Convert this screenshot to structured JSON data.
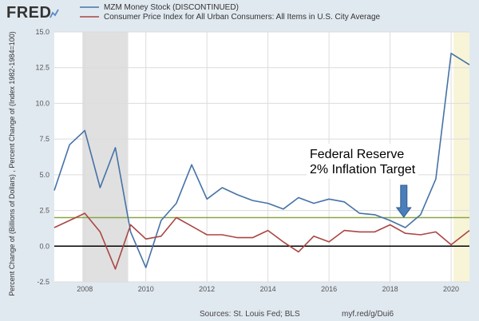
{
  "header": {
    "logo": "FRED",
    "logo_icon": "line-chart-icon"
  },
  "legend": [
    {
      "label": "MZM Money Stock (DISCONTINUED)",
      "color": "#4572a7"
    },
    {
      "label": "Consumer Price Index for All Urban Consumers: All Items in U.S. City Average",
      "color": "#aa4643"
    }
  ],
  "footer": {
    "source": "Sources: St. Louis Fed; BLS",
    "url": "myf.red/g/Dui6"
  },
  "chart_data": {
    "type": "line",
    "ylabel": "Percent Change of (Billions of Dollars) , Percent Change of (Index 1982-1984=100)",
    "ylim": [
      -2.5,
      15.0
    ],
    "yticks": [
      -2.5,
      0.0,
      2.5,
      5.0,
      7.5,
      10.0,
      12.5,
      15.0
    ],
    "ytick_labels": [
      "-2.5",
      "0.0",
      "2.5",
      "5.0",
      "7.5",
      "10.0",
      "12.5",
      "15.0"
    ],
    "xlim": [
      2007.0,
      2020.6
    ],
    "xticks": [
      2008,
      2010,
      2012,
      2014,
      2016,
      2018,
      2020
    ],
    "xtick_labels": [
      "2008",
      "2010",
      "2012",
      "2014",
      "2016",
      "2018",
      "2020"
    ],
    "grid": true,
    "recession_bands": [
      [
        2007.92,
        2009.42
      ],
      [
        2020.08,
        2020.6
      ]
    ],
    "series": [
      {
        "name": "MZM Money Stock (DISCONTINUED)",
        "color": "#4572a7",
        "x": [
          2007.0,
          2007.5,
          2008.0,
          2008.5,
          2009.0,
          2009.5,
          2010.0,
          2010.5,
          2011.0,
          2011.5,
          2012.0,
          2012.5,
          2013.0,
          2013.5,
          2014.0,
          2014.5,
          2015.0,
          2015.5,
          2016.0,
          2016.5,
          2017.0,
          2017.5,
          2018.0,
          2018.5,
          2019.0,
          2019.5,
          2020.0,
          2020.6
        ],
        "y": [
          3.9,
          7.1,
          8.1,
          4.1,
          6.9,
          1.0,
          -1.5,
          1.8,
          3.0,
          5.7,
          3.3,
          4.1,
          3.6,
          3.2,
          3.0,
          2.6,
          3.4,
          3.0,
          3.3,
          3.1,
          2.3,
          2.2,
          1.8,
          1.3,
          2.2,
          4.7,
          13.5,
          12.7
        ]
      },
      {
        "name": "Consumer Price Index for All Urban Consumers: All Items in U.S. City Average",
        "color": "#aa4643",
        "x": [
          2007.0,
          2007.5,
          2008.0,
          2008.5,
          2009.0,
          2009.5,
          2010.0,
          2010.5,
          2011.0,
          2011.5,
          2012.0,
          2012.5,
          2013.0,
          2013.5,
          2014.0,
          2014.5,
          2015.0,
          2015.5,
          2016.0,
          2016.5,
          2017.0,
          2017.5,
          2018.0,
          2018.5,
          2019.0,
          2019.5,
          2020.0,
          2020.6
        ],
        "y": [
          1.3,
          1.8,
          2.3,
          1.0,
          -1.6,
          1.5,
          0.5,
          0.7,
          2.0,
          1.4,
          0.8,
          0.8,
          0.6,
          0.6,
          1.1,
          0.3,
          -0.4,
          0.7,
          0.3,
          1.1,
          1.0,
          1.0,
          1.5,
          0.9,
          0.8,
          1.0,
          0.1,
          1.1
        ]
      }
    ],
    "reference_lines": [
      {
        "y": 2.0,
        "color": "#8aa646"
      },
      {
        "y": 0.0,
        "color": "#000000"
      }
    ],
    "annotation": {
      "lines": [
        "Federal Reserve",
        "2% Inflation Target"
      ],
      "arrow_color": "#4a7ebb",
      "arrow_x": 2018.45
    }
  }
}
